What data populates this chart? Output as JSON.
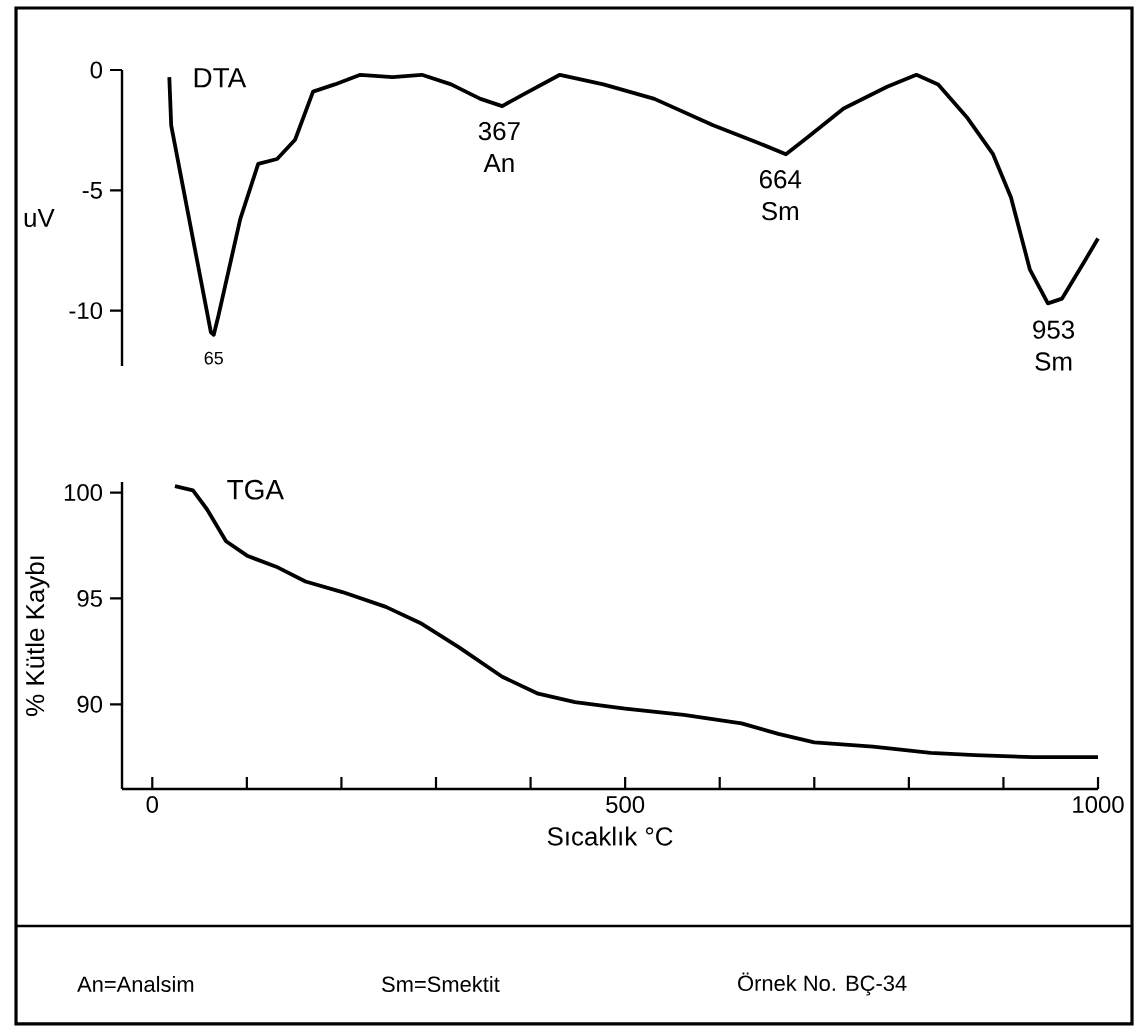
{
  "chart_data": [
    {
      "type": "line",
      "title": "DTA",
      "ylabel": "uV",
      "xlim": [
        -32,
        1000
      ],
      "ylim": [
        -12.3,
        0
      ],
      "yticks": [
        0,
        -5,
        -10
      ],
      "tick_labels": "y",
      "series": [
        {
          "color": "#000000",
          "x": [
            18,
            20,
            39,
            62,
            65,
            70,
            93,
            112,
            132,
            151,
            170,
            193,
            220,
            254,
            285,
            316,
            347,
            370,
            393,
            431,
            477,
            531,
            593,
            639,
            670,
            693,
            731,
            777,
            808,
            831,
            862,
            889,
            908,
            928,
            947,
            962,
            985,
            1000
          ],
          "values": [
            -0.3,
            -2.3,
            -6.2,
            -10.9,
            -11.0,
            -10.2,
            -6.2,
            -3.9,
            -3.7,
            -2.9,
            -0.9,
            -0.6,
            -0.2,
            -0.3,
            -0.2,
            -0.6,
            -1.2,
            -1.5,
            -1.0,
            -0.2,
            -0.6,
            -1.2,
            -2.3,
            -3.0,
            -3.5,
            -2.8,
            -1.6,
            -0.7,
            -0.2,
            -0.6,
            -2.0,
            -3.5,
            -5.3,
            -8.3,
            -9.7,
            -9.5,
            -8.0,
            -7.0
          ]
        }
      ],
      "annotations": [
        {
          "text": "65",
          "x": 65,
          "y": -11.0
        },
        {
          "text": "367 An",
          "x": 367,
          "y": -1.45
        },
        {
          "text": "664 Sm",
          "x": 664,
          "y": -3.45
        },
        {
          "text": "953 Sm",
          "x": 953,
          "y": -9.7
        }
      ]
    },
    {
      "type": "line",
      "title": "TGA",
      "xlabel": "Sıcaklık °C",
      "ylabel": "% Kütle Kaybı",
      "xlim": [
        -32,
        1000
      ],
      "ylim": [
        86,
        100.5
      ],
      "xticks": [
        0,
        {
          "value": 100,
          "label": null
        },
        {
          "value": 200,
          "label": null
        },
        {
          "value": 300,
          "label": null
        },
        {
          "value": 400,
          "label": null
        },
        500,
        {
          "value": 600,
          "label": null
        },
        {
          "value": 700,
          "label": null
        },
        {
          "value": 800,
          "label": null
        },
        {
          "value": 900,
          "label": null
        },
        1000
      ],
      "yticks": [
        100,
        95,
        90
      ],
      "series": [
        {
          "color": "#000000",
          "x": [
            24,
            43,
            58,
            78,
            101,
            131,
            162,
            201,
            247,
            285,
            324,
            370,
            408,
            447,
            500,
            562,
            623,
            662,
            700,
            762,
            823,
            870,
            931,
            1000
          ],
          "values": [
            100.3,
            100.1,
            99.2,
            97.7,
            97.0,
            96.5,
            95.8,
            95.3,
            94.6,
            93.8,
            92.7,
            91.3,
            90.5,
            90.1,
            89.8,
            89.5,
            89.1,
            88.6,
            88.2,
            88.0,
            87.7,
            87.6,
            87.5,
            87.5
          ]
        }
      ],
      "annotations": [
        "An=Analsim",
        "Sm=Smektit",
        "Örnek No. BÇ-34"
      ]
    }
  ]
}
